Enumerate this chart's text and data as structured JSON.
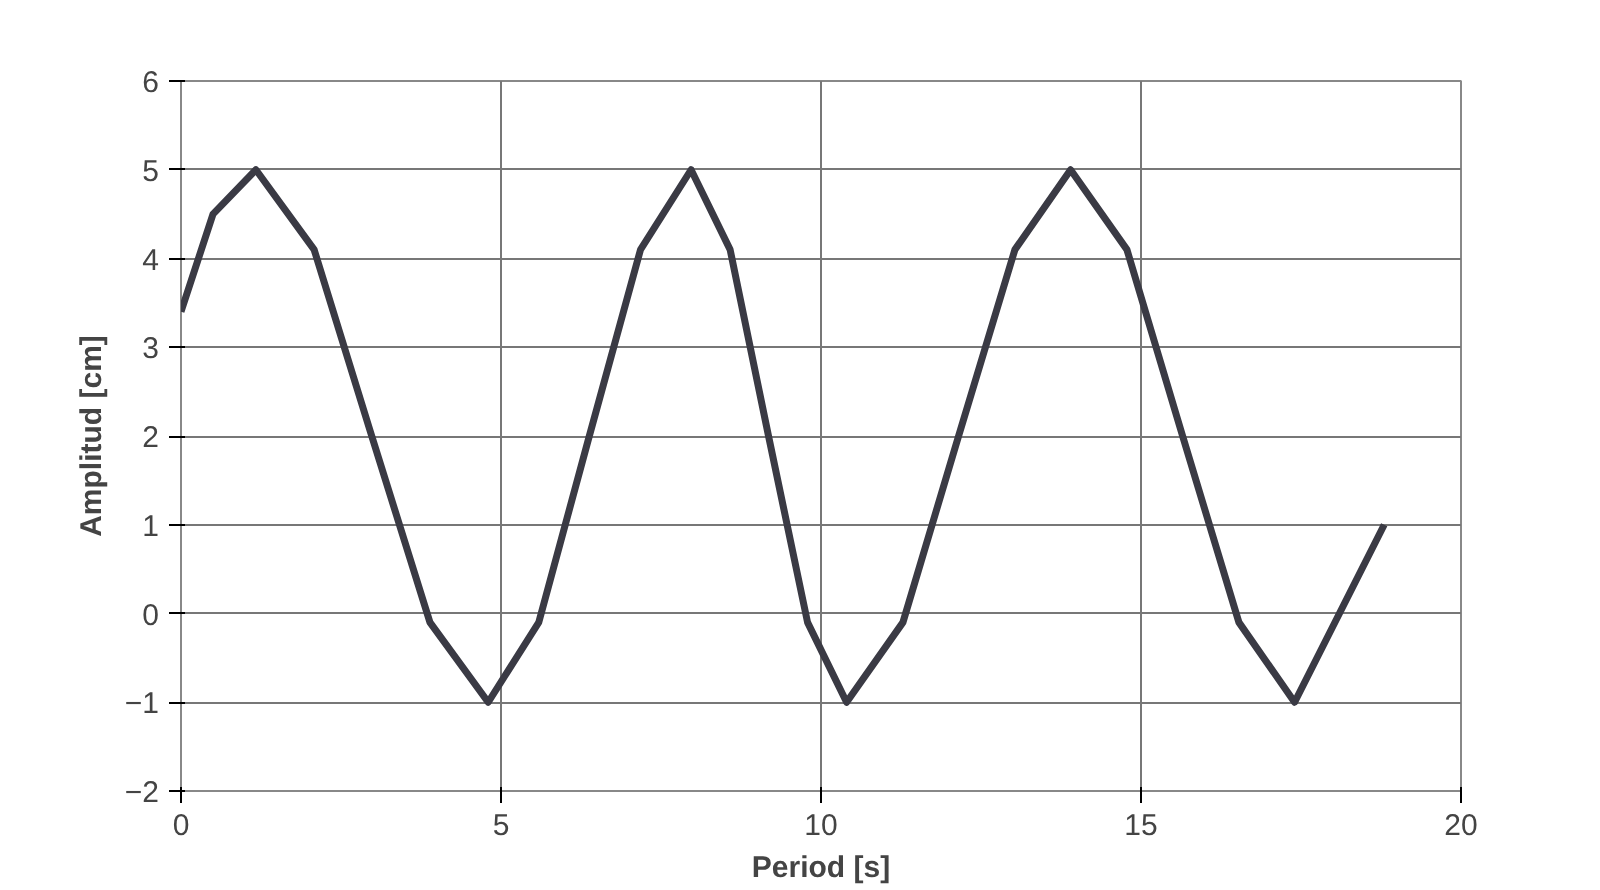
{
  "chart_data": {
    "type": "line",
    "xlabel": "Period [s]",
    "ylabel": "Amplitud [cm]",
    "xlim": [
      0,
      20
    ],
    "ylim": [
      -2,
      6
    ],
    "xticks": [
      0,
      5,
      10,
      15,
      20
    ],
    "yticks": [
      -2,
      -1,
      0,
      1,
      2,
      3,
      4,
      5,
      6
    ],
    "grid": true,
    "line_style": "solid",
    "series": [
      {
        "color": "#3a3a44",
        "x": [
          0,
          0.5,
          1.17,
          2.08,
          2.98,
          3.89,
          4.8,
          5.59,
          6.38,
          7.18,
          7.97,
          8.58,
          9.18,
          9.79,
          10.4,
          11.28,
          12.15,
          13.03,
          13.9,
          14.78,
          15.65,
          16.53,
          17.4,
          18.1,
          18.8
        ],
        "values": [
          3.4,
          4.5,
          5,
          4.1,
          2,
          -0.1,
          -1,
          -0.1,
          2,
          4.1,
          5,
          4.1,
          2,
          -0.1,
          -1,
          -0.1,
          2,
          4.1,
          5,
          4.1,
          2,
          -0.1,
          -1,
          0,
          1
        ]
      }
    ]
  }
}
